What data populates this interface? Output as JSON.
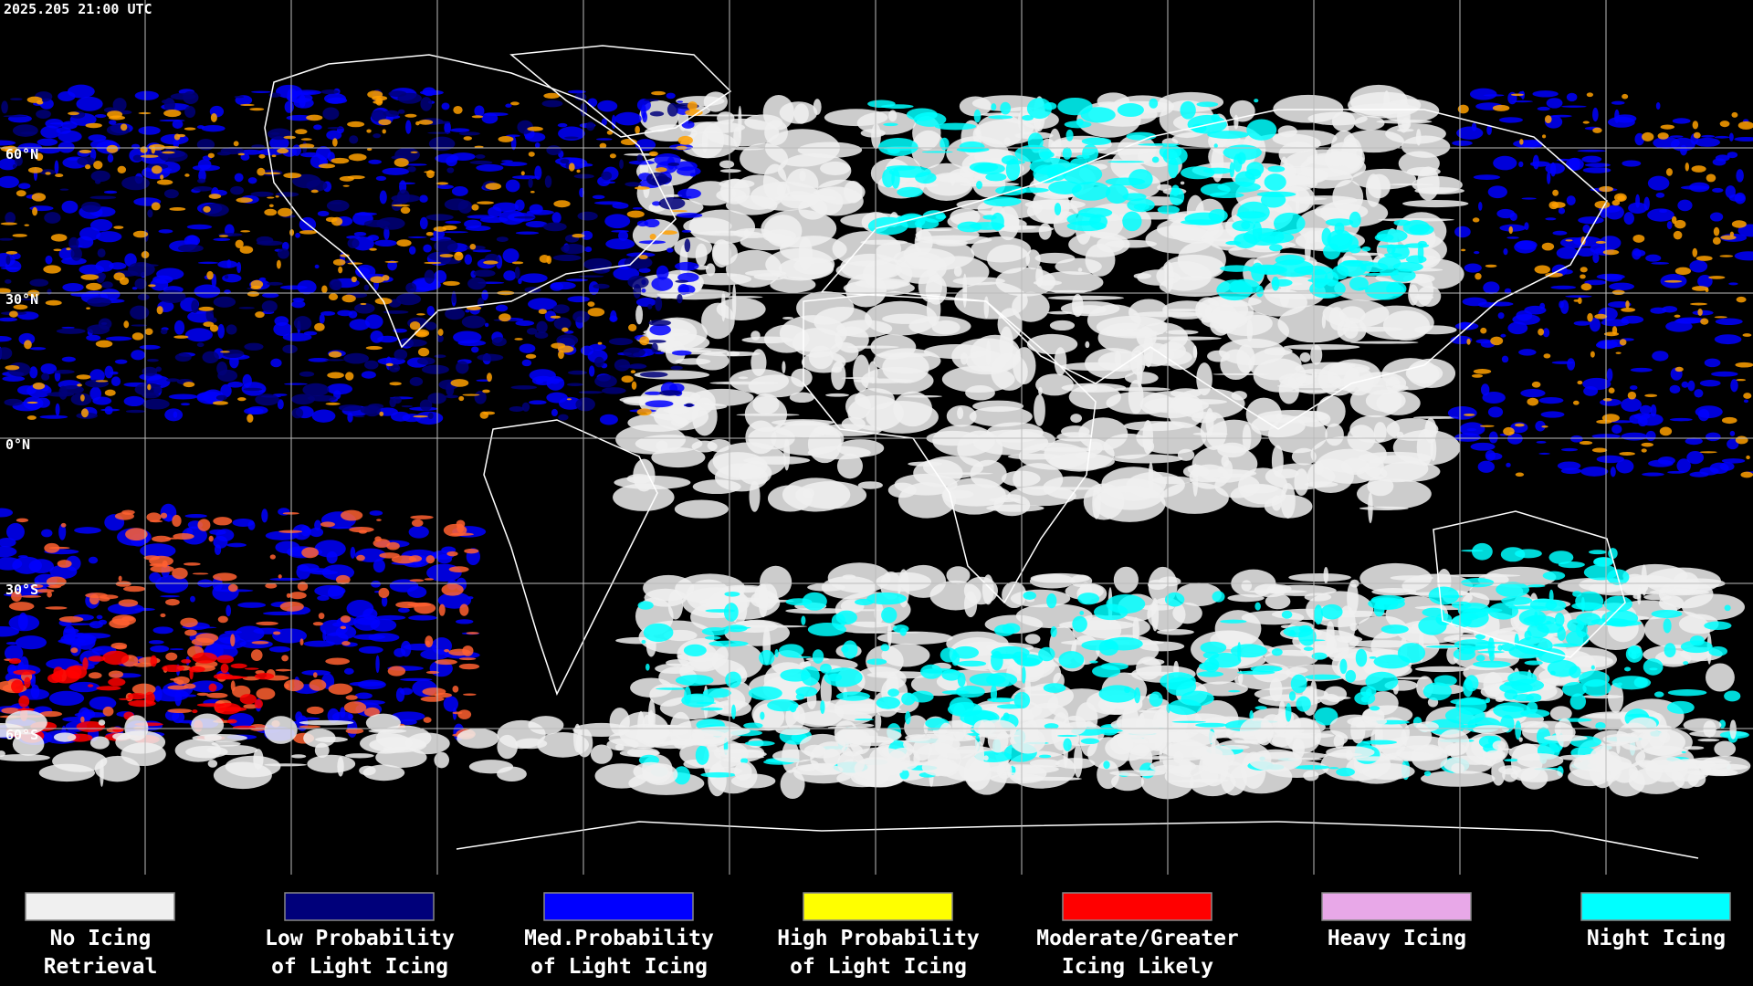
{
  "header": {
    "timestamp": "2025.205 21:00 UTC"
  },
  "grid": {
    "lat_labels": [
      "60°N",
      "30°N",
      "0°N",
      "30°S",
      "60°S"
    ]
  },
  "legend": {
    "items": [
      {
        "lines": [
          "No Icing",
          "Retrieval"
        ],
        "color": "#f0f0f0"
      },
      {
        "lines": [
          "Low Probability",
          "of Light Icing"
        ],
        "color": "#00007a"
      },
      {
        "lines": [
          "Med.Probability",
          "of Light Icing"
        ],
        "color": "#0000ff"
      },
      {
        "lines": [
          "High Probability",
          "of Light Icing"
        ],
        "color": "#ffff00"
      },
      {
        "lines": [
          "Moderate/Greater",
          "Icing Likely"
        ],
        "color": "#ff0000"
      },
      {
        "lines": [
          "Heavy Icing"
        ],
        "color": "#e8a8e8"
      },
      {
        "lines": [
          "Night Icing"
        ],
        "color": "#00ffff"
      }
    ]
  }
}
